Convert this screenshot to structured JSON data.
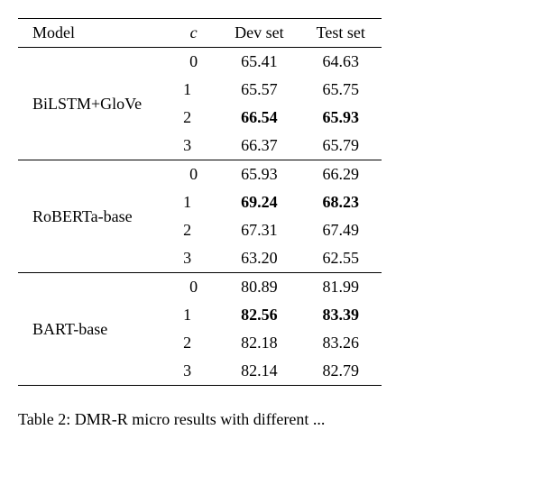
{
  "table": {
    "headers": [
      "Model",
      "c",
      "Dev set",
      "Test set"
    ],
    "header_c_italic": true,
    "groups": [
      {
        "model": "BiLSTM+GloVe",
        "rows": [
          {
            "c": "0",
            "dev": "65.41",
            "test": "64.63",
            "bold_dev": false,
            "bold_test": false
          },
          {
            "c": "1",
            "dev": "65.57",
            "test": "65.75",
            "bold_dev": false,
            "bold_test": false
          },
          {
            "c": "2",
            "dev": "66.54",
            "test": "65.93",
            "bold_dev": true,
            "bold_test": true
          },
          {
            "c": "3",
            "dev": "66.37",
            "test": "65.79",
            "bold_dev": false,
            "bold_test": false
          }
        ]
      },
      {
        "model": "RoBERTa-base",
        "rows": [
          {
            "c": "0",
            "dev": "65.93",
            "test": "66.29",
            "bold_dev": false,
            "bold_test": false
          },
          {
            "c": "1",
            "dev": "69.24",
            "test": "68.23",
            "bold_dev": true,
            "bold_test": true
          },
          {
            "c": "2",
            "dev": "67.31",
            "test": "67.49",
            "bold_dev": false,
            "bold_test": false
          },
          {
            "c": "3",
            "dev": "63.20",
            "test": "62.55",
            "bold_dev": false,
            "bold_test": false
          }
        ]
      },
      {
        "model": "BART-base",
        "rows": [
          {
            "c": "0",
            "dev": "80.89",
            "test": "81.99",
            "bold_dev": false,
            "bold_test": false
          },
          {
            "c": "1",
            "dev": "82.56",
            "test": "83.39",
            "bold_dev": true,
            "bold_test": true
          },
          {
            "c": "2",
            "dev": "82.18",
            "test": "83.26",
            "bold_dev": false,
            "bold_test": false
          },
          {
            "c": "3",
            "dev": "82.14",
            "test": "82.79",
            "bold_dev": false,
            "bold_test": false
          }
        ]
      }
    ]
  },
  "caption_prefix": "Table 2: ",
  "caption_text": "DMR-R micro results with different ..."
}
